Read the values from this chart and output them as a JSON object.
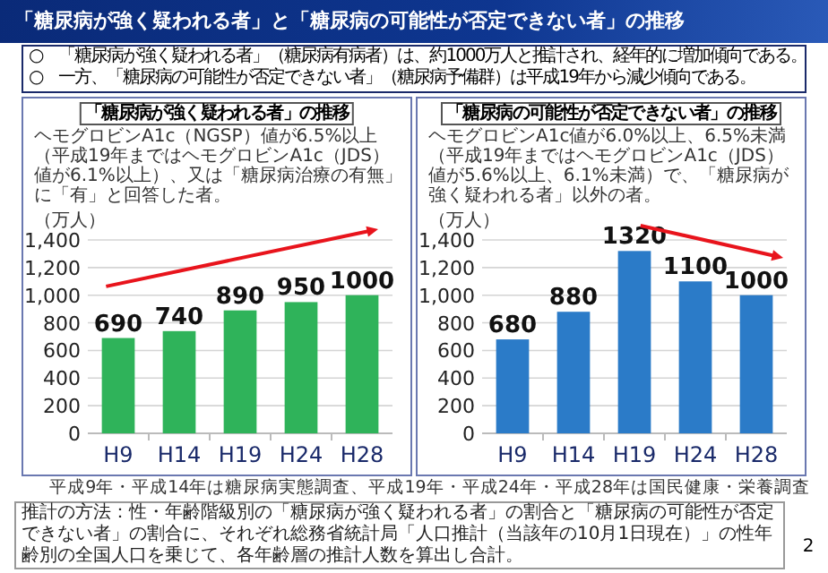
{
  "chart_data": [
    {
      "type": "other",
      "title": "「糖尿病が強く疑われる者」と「糖尿病の可能性が否定できない者」の推移",
      "annotations": [
        "○　「糖尿病が強く疑われる者」（糖尿病有病者）は、約1000万人と推計され、経年的に増加傾向である。",
        "○　一方、「糖尿病の可能性が否定できない者」（糖尿病予備群）は平成19年から減少傾向である。",
        "平成9年・平成14年は糖尿病実態調査、平成19年・平成24年・平成28年は国民健康・栄養調査",
        "推計の方法：性・年齢階級別の「糖尿病が強く疑われる者」の割合と「糖尿病の可能性が否定できない者」の割合に、それぞれ総務省統計局「人口推計（当該年の10月1日現在）」の性年齢別の全国人口を乗じて、各年齢層の推計人数を算出し合計。",
        "2"
      ]
    },
    {
      "type": "bar",
      "title": "「糖尿病が強く疑われる者」の推移",
      "subtitle": "ヘモグロビンA1c（NGSP）値が6.5%以上（平成19年まではヘモグロビンA1c（JDS）値が6.1%以上）、又は「糖尿病治療の有無」に「有」と回答した者。",
      "ylabel": "（万人）",
      "categories": [
        "H9",
        "H14",
        "H19",
        "H24",
        "H28"
      ],
      "values": [
        690,
        740,
        890,
        950,
        1000
      ],
      "color": "#2fb35a",
      "ylim": [
        0,
        1400
      ],
      "yticks": [
        0,
        200,
        400,
        600,
        800,
        {
          "value": 1000,
          "label": "1,000"
        },
        {
          "value": 1200,
          "label": "1,200"
        },
        {
          "value": 1400,
          "label": "1,400"
        }
      ],
      "grid": "y",
      "data_labels": true
    },
    {
      "type": "bar",
      "title": "「糖尿病の可能性が否定できない者」の推移",
      "subtitle": "ヘモグロビンA1c値が6.0%以上、6.5%未満（平成19年まではヘモグロビンA1c（JDS）値が5.6%以上、6.1%未満）で、「糖尿病が強く疑われる者」以外の者。",
      "ylabel": "（万人）",
      "categories": [
        "H9",
        "H14",
        "H19",
        "H24",
        "H28"
      ],
      "values": [
        680,
        880,
        1320,
        1100,
        1000
      ],
      "color": "#2b7bc8",
      "ylim": [
        0,
        1400
      ],
      "yticks": [
        0,
        200,
        400,
        600,
        800,
        {
          "value": 1000,
          "label": "1,000"
        },
        {
          "value": 1200,
          "label": "1,200"
        },
        {
          "value": 1400,
          "label": "1,400"
        }
      ],
      "grid": "y",
      "data_labels": true
    }
  ]
}
